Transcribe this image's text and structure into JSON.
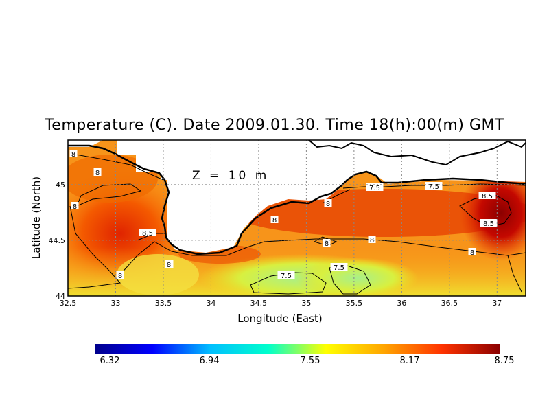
{
  "title": "Temperature (C). Date 2009.01.30. Time 18(h):00(m) GMT",
  "depth_label": "Z = 10 m",
  "xlabel": "Longitude (East)",
  "ylabel": "Latitude (North)",
  "x_ticks": [
    "32.5",
    "33",
    "33.5",
    "34",
    "34.5",
    "35",
    "35.5",
    "36",
    "36.5",
    "37"
  ],
  "y_ticks": [
    "44",
    "44.5",
    "45"
  ],
  "x_range": [
    32.5,
    37.3
  ],
  "y_range": [
    44.0,
    45.4
  ],
  "contour_labels": [
    "8",
    "8",
    "8",
    "8.5",
    "8",
    "8",
    "8",
    "8",
    "7.5",
    "7.5",
    "8",
    "8",
    "8",
    "8.5",
    "8.5",
    "8",
    "7.5",
    "7.5"
  ],
  "colorbar": {
    "min": 6.32,
    "max": 8.75,
    "tick_labels": [
      "6.32",
      "6.94",
      "7.55",
      "8.17",
      "8.75"
    ],
    "colors": [
      "#00008b",
      "#0000ff",
      "#00bfff",
      "#00ffcc",
      "#ffff00",
      "#ffa500",
      "#ff3300",
      "#8b0000"
    ]
  }
}
